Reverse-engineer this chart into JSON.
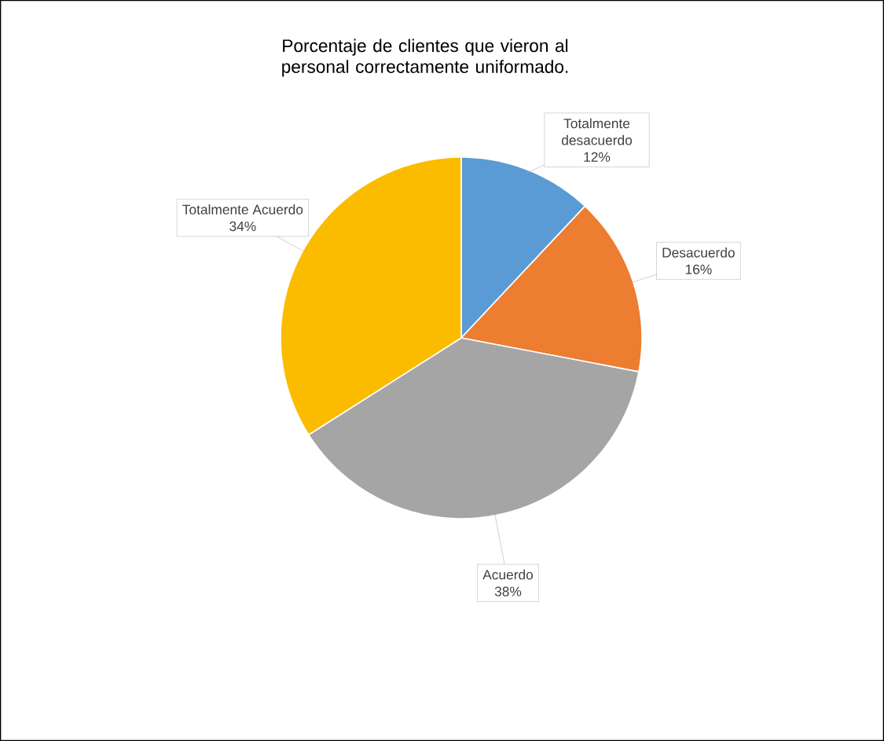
{
  "chart_data": {
    "type": "pie",
    "title": "Porcentaje de clientes que vieron al personal correctamente uniformado.",
    "categories": [
      "Totalmente desacuerdo",
      "Desacuerdo",
      "Acuerdo",
      "Totalmente Acuerdo"
    ],
    "values": [
      12,
      16,
      38,
      34
    ],
    "colors": [
      "#5b9bd5",
      "#ed7d31",
      "#a5a5a5",
      "#fbbc00"
    ],
    "value_labels": [
      "12%",
      "16%",
      "38%",
      "34%"
    ]
  }
}
